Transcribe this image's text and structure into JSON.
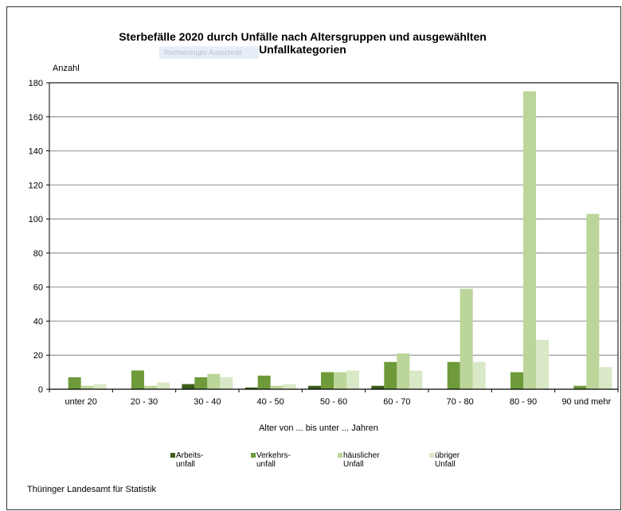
{
  "chart_data": {
    "type": "bar",
    "title": "Sterbefälle 2020 durch Unfälle nach Altersgruppen und ausgewählten Unfallkategorien",
    "title_lines": [
      "Sterbefälle 2020 durch Unfälle nach Altersgruppen und ausgewählten",
      "Unfallkategorien"
    ],
    "ylabel": "Anzahl",
    "xlabel": "Alter von ... bis unter ... Jahren",
    "ylim": [
      0,
      180
    ],
    "yticks": [
      0,
      20,
      40,
      60,
      80,
      100,
      120,
      140,
      160,
      180
    ],
    "grid": true,
    "legend_position": "bottom",
    "categories": [
      "unter 20",
      "20 - 30",
      "30 - 40",
      "40 - 50",
      "50 - 60",
      "60 - 70",
      "70 - 80",
      "80 - 90",
      "90 und mehr"
    ],
    "series": [
      {
        "name": "Arbeits-\nunfall",
        "color": "#3d5c1c",
        "values": [
          0,
          0,
          3,
          1,
          2,
          2,
          0,
          0,
          0
        ]
      },
      {
        "name": "Verkehrs-\nunfall",
        "color": "#6e9a3a",
        "values": [
          7,
          11,
          7,
          8,
          10,
          16,
          16,
          10,
          2
        ]
      },
      {
        "name": "häuslicher\nUnfall",
        "color": "#bcd59a",
        "values": [
          2,
          2,
          9,
          2,
          10,
          21,
          59,
          175,
          103
        ]
      },
      {
        "name": "übriger\nUnfall",
        "color": "#d9e8c6",
        "values": [
          3,
          4,
          7,
          3,
          11,
          11,
          16,
          29,
          13
        ]
      }
    ]
  },
  "ghost_text": "Rechteckiges Ausschnitt",
  "source": "Thüringer Landesamt für Statistik"
}
